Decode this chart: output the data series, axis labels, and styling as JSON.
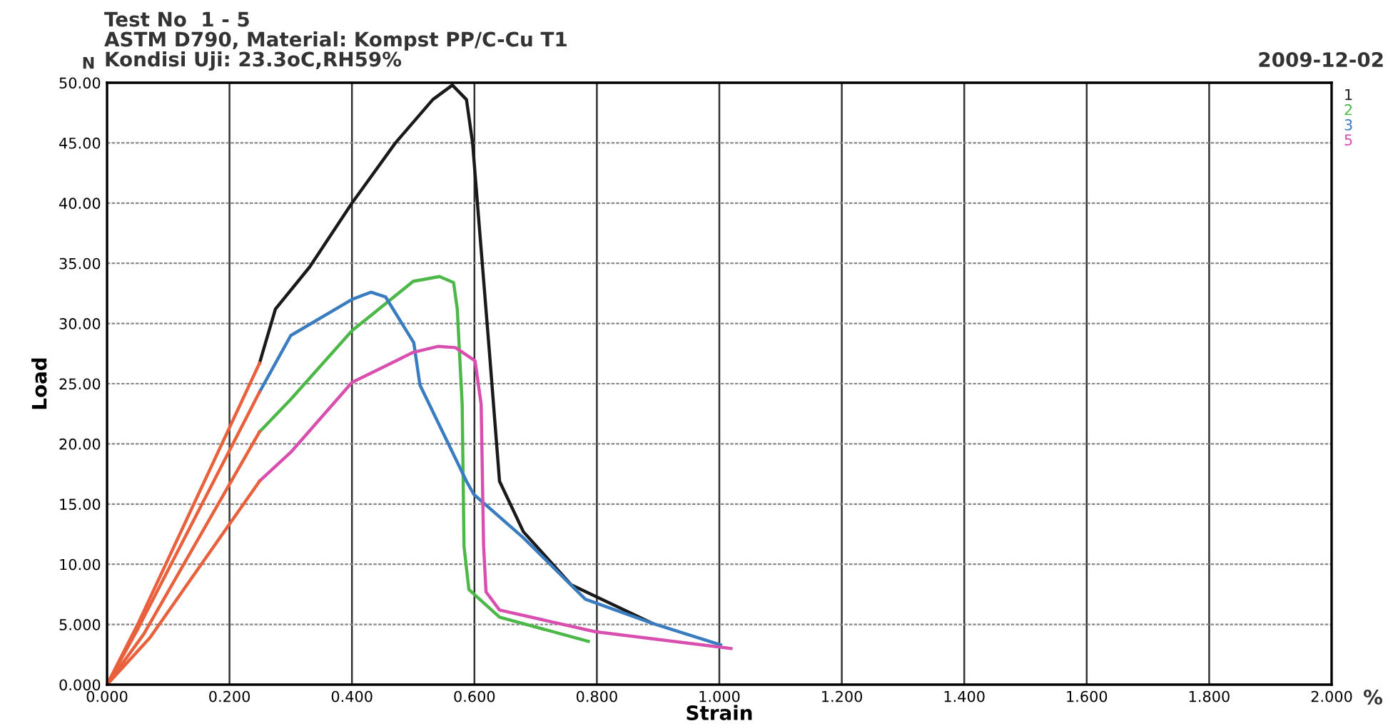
{
  "chart_data": {
    "type": "line",
    "title": "Test No  1 - 5",
    "subtitle": "ASTM D790, Material: Kompst PP/C-Cu T1\nKondisi Uji: 23.3oC,RH59%",
    "xlabel": "Strain",
    "ylabel": "Load",
    "annotations": [
      "N",
      "%",
      "2009-12-02"
    ],
    "xlim": [
      0,
      2
    ],
    "ylim": [
      0,
      50
    ],
    "xticks": [
      {
        "value": 0,
        "label": "0.000"
      },
      {
        "value": 0.2,
        "label": "0.200"
      },
      {
        "value": 0.4,
        "label": "0.400"
      },
      {
        "value": 0.6,
        "label": "0.600"
      },
      {
        "value": 0.8,
        "label": "0.800"
      },
      {
        "value": 1.0,
        "label": "1.000"
      },
      {
        "value": 1.2,
        "label": "1.200"
      },
      {
        "value": 1.4,
        "label": "1.400"
      },
      {
        "value": 1.6,
        "label": "1.600"
      },
      {
        "value": 1.8,
        "label": "1.800"
      },
      {
        "value": 2.0,
        "label": "2.000"
      }
    ],
    "yticks": [
      {
        "value": 0,
        "label": "0.000"
      },
      {
        "value": 5,
        "label": "5.000"
      },
      {
        "value": 10,
        "label": "10.00"
      },
      {
        "value": 15,
        "label": "15.00"
      },
      {
        "value": 20,
        "label": "20.00"
      },
      {
        "value": 25,
        "label": "25.00"
      },
      {
        "value": 30,
        "label": "30.00"
      },
      {
        "value": 35,
        "label": "35.00"
      },
      {
        "value": 40,
        "label": "40.00"
      },
      {
        "value": 45,
        "label": "45.00"
      },
      {
        "value": 50,
        "label": "50.00"
      }
    ],
    "grid": true,
    "legend": "top right",
    "series": [
      {
        "name": "1",
        "color": "#1a1a1a",
        "x": [
          0.249,
          0.275,
          0.331,
          0.4,
          0.471,
          0.532,
          0.564,
          0.587,
          0.597,
          0.625,
          0.641,
          0.68,
          0.758,
          0.89
        ],
        "values": [
          26.7,
          31.2,
          34.7,
          40.0,
          45.0,
          48.6,
          49.8,
          48.6,
          45.0,
          27.3,
          16.9,
          12.7,
          8.3,
          5.1
        ]
      },
      {
        "name": "2",
        "color": "#4cb848",
        "x": [
          0.249,
          0.3,
          0.4,
          0.5,
          0.543,
          0.566,
          0.572,
          0.58,
          0.583,
          0.591,
          0.641,
          0.786
        ],
        "values": [
          21.0,
          23.7,
          29.4,
          33.5,
          33.9,
          33.4,
          31.2,
          23.3,
          11.5,
          7.9,
          5.6,
          3.6
        ]
      },
      {
        "name": "3",
        "color": "#3a7cc0",
        "x": [
          0.249,
          0.3,
          0.4,
          0.431,
          0.455,
          0.501,
          0.511,
          0.548,
          0.587,
          0.599,
          0.68,
          0.781,
          0.89,
          1.002
        ],
        "values": [
          24.3,
          29.0,
          32.0,
          32.6,
          32.2,
          28.4,
          24.9,
          21.0,
          16.9,
          15.8,
          12.2,
          7.1,
          5.1,
          3.3
        ]
      },
      {
        "name": "5",
        "color": "#d94fb0",
        "x": [
          0.249,
          0.3,
          0.4,
          0.5,
          0.541,
          0.569,
          0.601,
          0.611,
          0.615,
          0.619,
          0.641,
          0.797,
          1.019
        ],
        "values": [
          16.9,
          19.3,
          25.1,
          27.6,
          28.1,
          28.0,
          26.9,
          23.3,
          11.5,
          7.7,
          6.2,
          4.4,
          3.0
        ]
      },
      {
        "color": "#e8603c",
        "x": [
          0,
          0.05,
          0.249
        ],
        "values": [
          0,
          5.0,
          26.7
        ]
      },
      {
        "color": "#e8603c",
        "x": [
          0,
          0.05,
          0.249
        ],
        "values": [
          0,
          4.6,
          24.3
        ]
      },
      {
        "color": "#e8603c",
        "x": [
          0,
          0.06,
          0.249
        ],
        "values": [
          0,
          4.2,
          21.0
        ]
      },
      {
        "color": "#e8603c",
        "x": [
          0,
          0.07,
          0.249
        ],
        "values": [
          0,
          3.9,
          16.9
        ]
      }
    ]
  }
}
